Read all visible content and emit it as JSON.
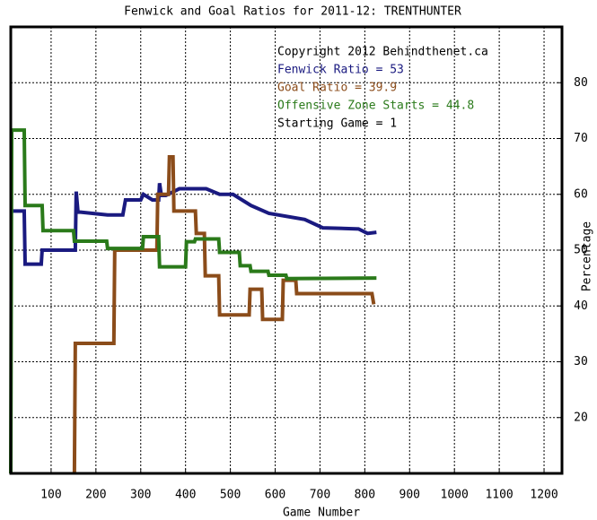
{
  "chart_data": {
    "type": "line",
    "title": "Fenwick and Goal Ratios for 2011-12: TRENTHUNTER",
    "xlabel": "Game Number",
    "ylabel": "Percentage",
    "xlim": [
      10,
      1240
    ],
    "ylim": [
      10,
      90
    ],
    "xticks": [
      100,
      200,
      300,
      400,
      500,
      600,
      700,
      800,
      900,
      1000,
      1100,
      1200
    ],
    "yticks": [
      20,
      30,
      40,
      50,
      60,
      70,
      80
    ],
    "grid": true,
    "annotations": [
      {
        "text": "Copyright 2012 Behindthenet.ca",
        "color": "#000000"
      },
      {
        "text": "Fenwick Ratio = 53",
        "color": "#1a1a80"
      },
      {
        "text": "Goal Ratio = 39.9",
        "color": "#8b4c1a"
      },
      {
        "text": "Offensive Zone Starts = 44.8",
        "color": "#2a7a1a"
      },
      {
        "text": "Starting Game = 1",
        "color": "#000000"
      }
    ],
    "series": [
      {
        "color": "#1a1a80",
        "x": [
          10,
          40,
          42,
          78,
          80,
          154,
          156,
          160,
          166,
          226,
          260,
          266,
          300,
          306,
          326,
          340,
          342,
          346,
          356,
          386,
          446,
          476,
          506,
          546,
          586,
          666,
          706,
          786,
          806,
          826
        ],
        "values": [
          57,
          57,
          47.5,
          47.5,
          50,
          50,
          60.5,
          56.8,
          56.8,
          56.3,
          56.3,
          59,
          59,
          60,
          59,
          59,
          62,
          59.8,
          59.8,
          61,
          61,
          60,
          60,
          58,
          56.6,
          55.5,
          54,
          53.8,
          53,
          53.2
        ]
      },
      {
        "color": "#8b4c1a",
        "x": [
          152,
          154,
          240,
          242,
          336,
          338,
          362,
          364,
          372,
          374,
          422,
          424,
          442,
          444,
          474,
          476,
          542,
          544,
          570,
          572,
          616,
          618,
          646,
          648,
          816,
          820
        ],
        "values": [
          10,
          33.3,
          33.3,
          50,
          50,
          60,
          60,
          66.7,
          66.7,
          57,
          57,
          53,
          53,
          45.4,
          45.4,
          38.4,
          38.4,
          43,
          43,
          37.6,
          37.6,
          44.6,
          44.6,
          42.2,
          42.2,
          40.3
        ]
      },
      {
        "color": "#2a7a1a",
        "x": [
          10,
          12,
          40,
          42,
          80,
          82,
          150,
          152,
          224,
          226,
          304,
          306,
          340,
          342,
          400,
          402,
          420,
          422,
          474,
          476,
          520,
          522,
          544,
          546,
          584,
          586,
          624,
          626,
          826
        ],
        "values": [
          10,
          71.5,
          71.5,
          58,
          58,
          53.5,
          53.5,
          51.6,
          51.6,
          50.3,
          50.3,
          52.4,
          52.4,
          47,
          47,
          51.5,
          51.5,
          52,
          52,
          49.6,
          49.6,
          47.2,
          47.2,
          46.2,
          46.2,
          45.5,
          45.5,
          44.9,
          45
        ]
      }
    ]
  }
}
